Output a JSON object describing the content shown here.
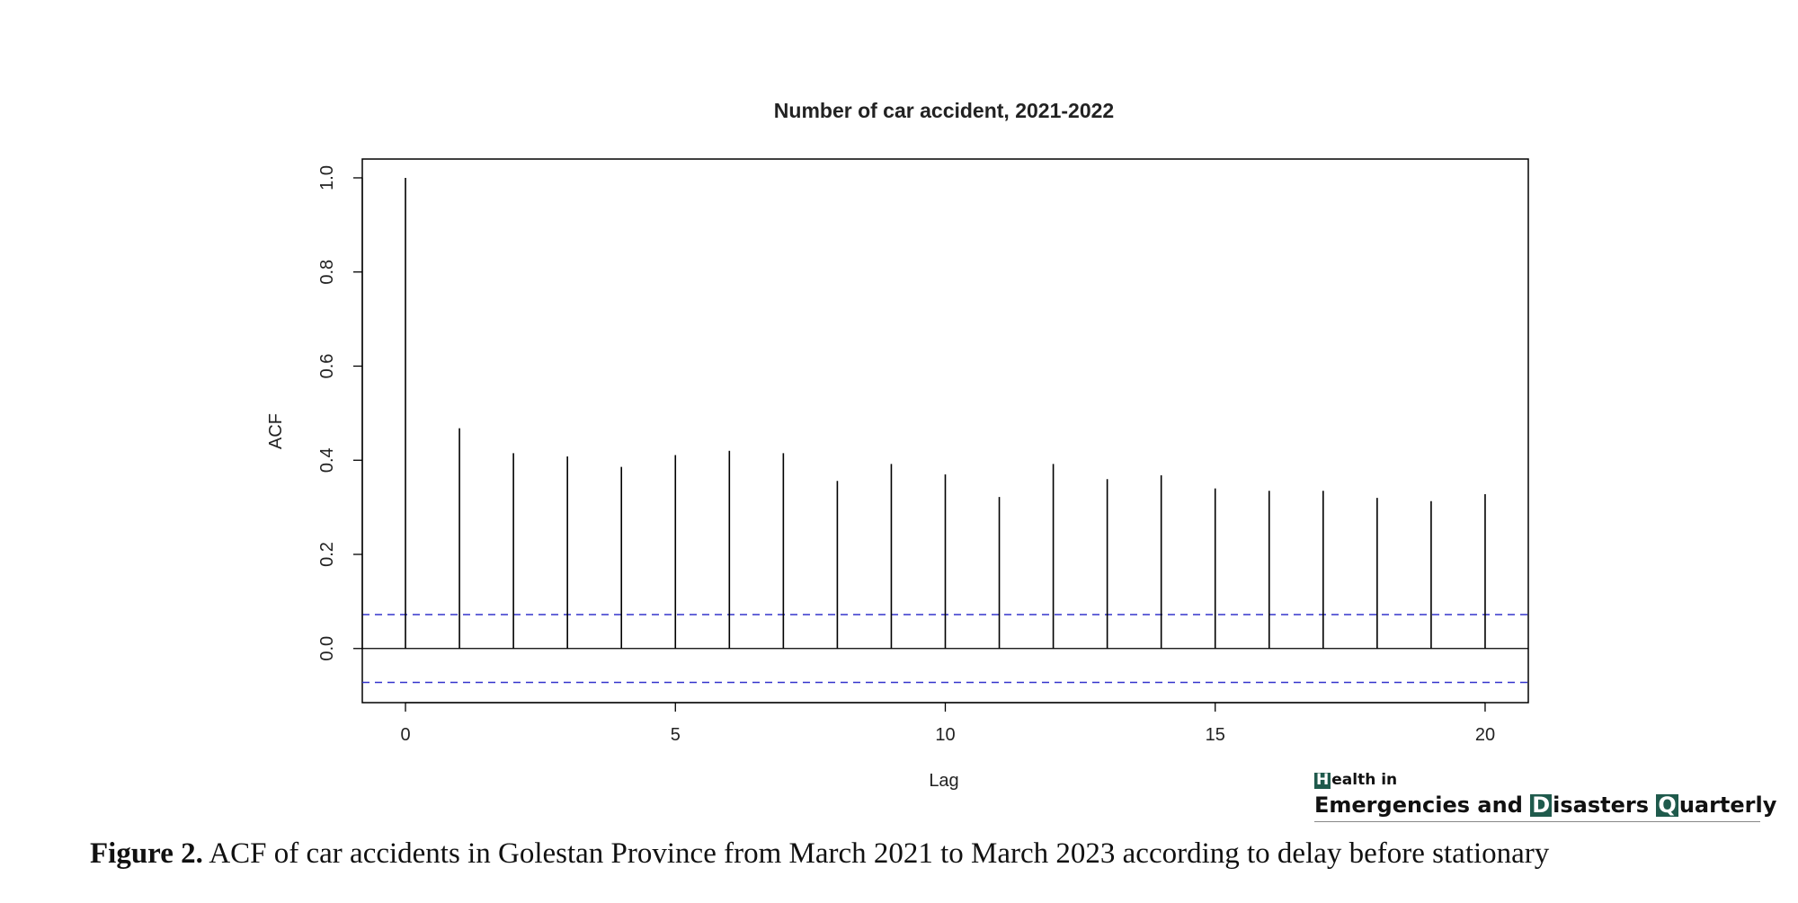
{
  "chart_data": {
    "type": "bar",
    "title": "Number of car accident, 2021-2022",
    "xlabel": "Lag",
    "ylabel": "ACF",
    "x": [
      0,
      1,
      2,
      3,
      4,
      5,
      6,
      7,
      8,
      9,
      10,
      11,
      12,
      13,
      14,
      15,
      16,
      17,
      18,
      19,
      20
    ],
    "values": [
      1.0,
      0.468,
      0.415,
      0.408,
      0.386,
      0.411,
      0.42,
      0.415,
      0.356,
      0.392,
      0.37,
      0.322,
      0.392,
      0.36,
      0.368,
      0.34,
      0.335,
      0.335,
      0.32,
      0.313,
      0.328
    ],
    "xlim": [
      -0.8,
      20.8
    ],
    "ylim": [
      -0.115,
      1.04
    ],
    "xticks": [
      0,
      5,
      10,
      15,
      20
    ],
    "yticks": [
      0.0,
      0.2,
      0.4,
      0.6,
      0.8,
      1.0
    ],
    "xtick_labels": [
      "0",
      "5",
      "10",
      "15",
      "20"
    ],
    "ytick_labels": [
      "0.0",
      "0.2",
      "0.4",
      "0.6",
      "0.8",
      "1.0"
    ],
    "confidence_bounds": [
      0.072,
      -0.072
    ],
    "grid": false,
    "colors": {
      "bars": "#000000",
      "bounds": "#3333cc",
      "zero_line": "#000000"
    }
  },
  "caption": {
    "label": "Figure 2.",
    "text": "ACF of car accidents in Golestan Province from March 2021 to March 2023 according to delay before stationary"
  },
  "logo": {
    "line1_initial": "H",
    "line1_rest": "ealth in",
    "word1": "Emergencies and",
    "word2_initial": "D",
    "word2_rest": "isasters",
    "word3_initial": "Q",
    "word3_rest": "uarterly"
  }
}
